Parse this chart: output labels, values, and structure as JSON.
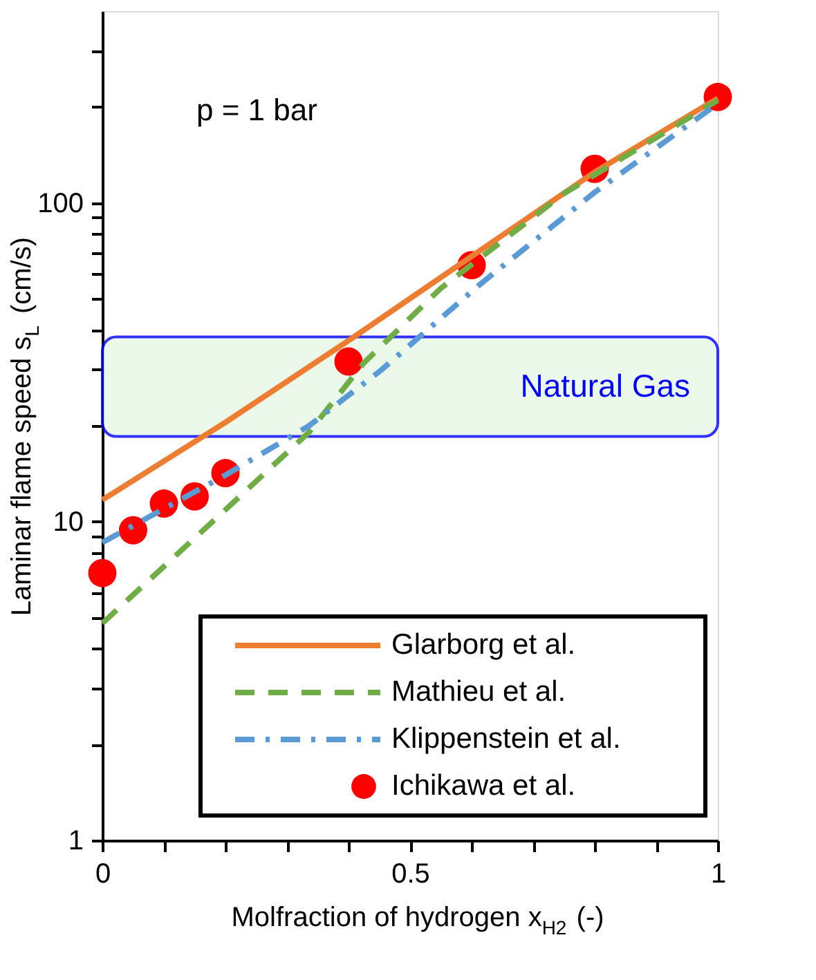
{
  "chart_data": {
    "type": "line",
    "xlabel": "Molfraction of hydrogen x$_{H2}$ (-)",
    "ylabel": "Laminar flame speed s$_{L}$ (cm/s)",
    "xlim": [
      0,
      1
    ],
    "ylim": [
      1,
      400
    ],
    "log": "y",
    "grid": false,
    "legend": "bottom right",
    "xticks": [
      0,
      {
        "value": 0.1,
        "label": null
      },
      {
        "value": 0.2,
        "label": null
      },
      {
        "value": 0.3,
        "label": null
      },
      {
        "value": 0.4,
        "label": null
      },
      0.5,
      {
        "value": 0.6,
        "label": null
      },
      {
        "value": 0.7,
        "label": null
      },
      {
        "value": 0.8,
        "label": null
      },
      {
        "value": 0.9,
        "label": null
      },
      1
    ],
    "yticks": [
      1,
      {
        "value": 2,
        "label": null
      },
      {
        "value": 3,
        "label": null
      },
      {
        "value": 4,
        "label": null
      },
      {
        "value": 5,
        "label": null
      },
      {
        "value": 6,
        "label": null
      },
      {
        "value": 7,
        "label": null
      },
      {
        "value": 8,
        "label": null
      },
      {
        "value": 9,
        "label": null
      },
      10,
      {
        "value": 20,
        "label": null
      },
      {
        "value": 30,
        "label": null
      },
      {
        "value": 40,
        "label": null
      },
      {
        "value": 50,
        "label": null
      },
      {
        "value": 60,
        "label": null
      },
      {
        "value": 70,
        "label": null
      },
      {
        "value": 80,
        "label": null
      },
      {
        "value": 90,
        "label": null
      },
      100,
      {
        "value": 200,
        "label": null
      },
      {
        "value": 300,
        "label": null
      }
    ],
    "series": [
      {
        "name": "Glarborg et al.",
        "type": "line",
        "line_style": "solid",
        "color": "#ed7d31",
        "x": [
          0,
          0.2,
          0.4,
          0.6,
          0.8,
          1
        ],
        "values": [
          11.7,
          20.5,
          37,
          68,
          125,
          213
        ]
      },
      {
        "name": "Mathieu et al.",
        "type": "line",
        "line_style": "dashed",
        "color": "#70ad47",
        "x": [
          0,
          0.2,
          0.336,
          0.425,
          0.55,
          0.75,
          1
        ],
        "values": [
          4.8,
          10.9,
          19.1,
          31.5,
          54,
          107,
          210
        ]
      },
      {
        "name": "Klippenstein et al.",
        "type": "line",
        "line_style": "dashdot",
        "color": "#5b9bd5",
        "x": [
          0,
          0.2,
          0.336,
          0.454,
          0.611,
          0.8,
          1
        ],
        "values": [
          8.6,
          14,
          20,
          30,
          55,
          108,
          205
        ]
      },
      {
        "name": "Ichikawa et al.",
        "type": "scatter",
        "marker": "circle",
        "color": "#ff0000",
        "x": [
          0,
          0.05,
          0.1,
          0.15,
          0.2,
          0.4,
          0.6,
          0.8,
          1
        ],
        "values": [
          6.9,
          9.4,
          11.4,
          12.0,
          14.2,
          31.8,
          63.8,
          128,
          215
        ]
      }
    ],
    "bands": [
      {
        "axis": "y",
        "from": 18.5,
        "to": 38,
        "label": "Natural Gas",
        "color": "#e6f8e6"
      }
    ],
    "annotations": [
      "p = 1 bar"
    ]
  }
}
